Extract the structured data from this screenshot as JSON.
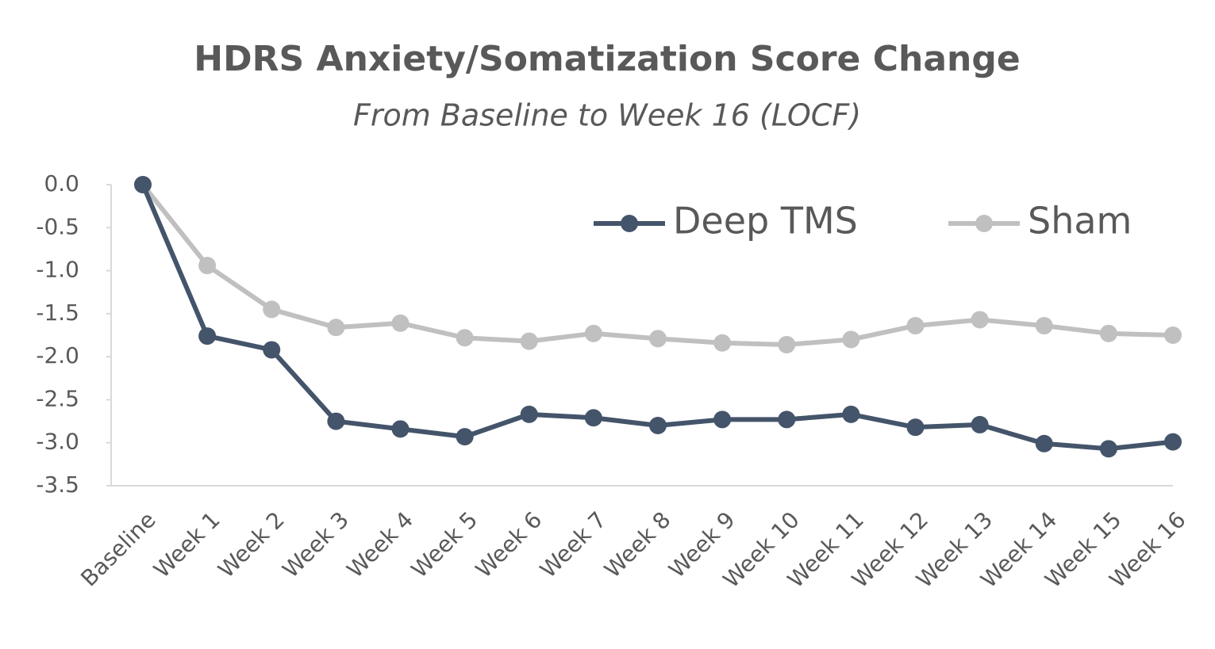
{
  "chart_data": {
    "type": "line",
    "title": "HDRS Anxiety/Somatization Score Change",
    "subtitle": "From Baseline to Week 16 (LOCF)",
    "categories": [
      "Baseline",
      "Week 1",
      "Week 2",
      "Week 3",
      "Week 4",
      "Week 5",
      "Week 6",
      "Week 7",
      "Week 8",
      "Week 9",
      "Week 10",
      "Week 11",
      "Week 12",
      "Week 13",
      "Week 14",
      "Week 15",
      "Week 16"
    ],
    "series": [
      {
        "name": "Deep TMS",
        "color": "#44546a",
        "values": [
          0,
          -1.76,
          -1.92,
          -2.75,
          -2.84,
          -2.93,
          -2.67,
          -2.71,
          -2.8,
          -2.73,
          -2.73,
          -2.67,
          -2.82,
          -2.79,
          -3.01,
          -3.07,
          -2.99
        ]
      },
      {
        "name": "Sham",
        "color": "#c0c0c0",
        "values": [
          0,
          -0.94,
          -1.45,
          -1.66,
          -1.61,
          -1.78,
          -1.82,
          -1.73,
          -1.79,
          -1.84,
          -1.86,
          -1.8,
          -1.64,
          -1.57,
          -1.64,
          -1.73,
          -1.75
        ]
      }
    ],
    "ylim": [
      -3.5,
      0
    ],
    "yticks": [
      {
        "value": 0,
        "label": "0.0"
      },
      -0.5,
      {
        "value": -1,
        "label": "-1.0"
      },
      -1.5,
      {
        "value": -2,
        "label": "-2.0"
      },
      -2.5,
      {
        "value": -3,
        "label": "-3.0"
      },
      -3.5
    ],
    "legend": "top-right",
    "grid": false
  }
}
